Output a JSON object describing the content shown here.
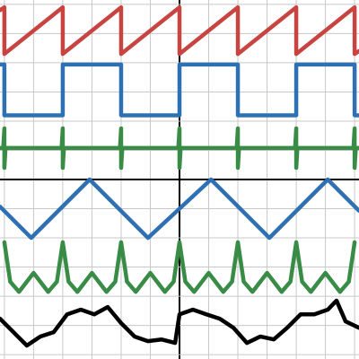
{
  "chart_data": {
    "type": "line",
    "grid": true,
    "xlim": [
      -6.15,
      6.15
    ],
    "ylim": [
      -6.15,
      6.15
    ],
    "xticks": [
      -6,
      -5,
      -4,
      -3,
      -2,
      -1,
      0,
      1,
      2,
      3,
      4,
      5,
      6
    ],
    "yticks": [
      -6,
      -5,
      -4,
      -3,
      -2,
      -1,
      0,
      1,
      2,
      3,
      4,
      5,
      6
    ],
    "series": [
      {
        "color": "#c74440",
        "x": [
          -6.15,
          -6,
          -6,
          -4,
          -4,
          -2,
          -2,
          0,
          0,
          2,
          2,
          4,
          4,
          6,
          6,
          6.15
        ],
        "values": [
          5.8,
          5.9,
          4.3,
          5.9,
          4.3,
          5.9,
          4.3,
          5.9,
          4.3,
          5.9,
          4.3,
          5.9,
          4.3,
          5.9,
          4.3,
          4.4
        ]
      },
      {
        "color": "#2d70b3",
        "x": [
          -6.15,
          -6,
          -6,
          -4,
          -4,
          -2,
          -2,
          0,
          0,
          2,
          2,
          4,
          4,
          6,
          6,
          6.15
        ],
        "values": [
          3.94,
          3.94,
          2.2,
          2.2,
          3.94,
          3.94,
          2.2,
          2.2,
          3.94,
          3.94,
          2.2,
          2.2,
          3.94,
          3.94,
          2.2,
          2.2
        ]
      },
      {
        "color": "#388c46",
        "x": [
          -6.15,
          -6.04,
          -6,
          -6,
          -5.96,
          -4.04,
          -4,
          -4,
          -3.96,
          -2.04,
          -2,
          -2,
          -1.96,
          -0.04,
          0,
          0,
          0.04,
          1.96,
          2,
          2,
          2.04,
          3.96,
          4,
          4,
          4.04,
          5.96,
          6,
          6,
          6.04,
          6.15
        ],
        "values": [
          1.08,
          1.08,
          1.75,
          0.4,
          1.08,
          1.08,
          1.75,
          0.4,
          1.08,
          1.08,
          1.75,
          0.4,
          1.08,
          1.08,
          1.75,
          0.4,
          1.08,
          1.08,
          1.75,
          0.4,
          1.08,
          1.08,
          1.75,
          0.4,
          1.08,
          1.08,
          1.75,
          0.4,
          1.08,
          1.08
        ]
      },
      {
        "color": "#2d70b3",
        "x": [
          -6.15,
          -5.08,
          -3.08,
          -1.08,
          1.08,
          3.08,
          5.08,
          6.15
        ],
        "values": [
          -0.93,
          -2,
          0,
          -2,
          0,
          -2,
          0,
          -1.07
        ]
      },
      {
        "color": "#388c46",
        "x": [
          -6,
          -5.8,
          -5.5,
          -5,
          -4.5,
          -4.2,
          -4,
          -3.8,
          -3.5,
          -3,
          -2.5,
          -2.2,
          -2,
          -1.8,
          -1.5,
          -1,
          -0.5,
          -0.2,
          0,
          0.2,
          0.5,
          1,
          1.5,
          1.8,
          2,
          2.2,
          2.5,
          3,
          3.5,
          3.8,
          4,
          4.2,
          4.5,
          5,
          5.5,
          5.8,
          6
        ],
        "values": [
          -2.15,
          -3.5,
          -3.85,
          -3.2,
          -3.85,
          -3.5,
          -2.15,
          -3.5,
          -3.85,
          -3.2,
          -3.85,
          -3.5,
          -2.15,
          -3.5,
          -3.85,
          -3.2,
          -3.85,
          -3.5,
          -2.15,
          -3.5,
          -3.85,
          -3.2,
          -3.85,
          -3.5,
          -2.15,
          -3.5,
          -3.85,
          -3.2,
          -3.85,
          -3.5,
          -2.15,
          -3.5,
          -3.85,
          -3.2,
          -3.85,
          -3.5,
          -2.15
        ]
      },
      {
        "color": "#000000",
        "x": [
          -6.15,
          -5.69,
          -5.23,
          -4.77,
          -4.31,
          -3.85,
          -3.38,
          -2.92,
          -2.46,
          -2,
          -1.54,
          -1.08,
          -0.62,
          -0.15,
          0,
          0.46,
          0.92,
          1.38,
          1.85,
          2.31,
          2.77,
          3.23,
          3.69,
          4.15,
          4.62,
          5.08,
          5.38,
          5.69,
          6.15
        ],
        "values": [
          -4.77,
          -5.23,
          -5.69,
          -5.38,
          -5.23,
          -4.62,
          -4.46,
          -4.62,
          -4.37,
          -4.92,
          -5.38,
          -5.54,
          -5.48,
          -5.6,
          -4.62,
          -4.46,
          -4.62,
          -4.77,
          -5.08,
          -5.6,
          -5.38,
          -5.48,
          -5.08,
          -4.62,
          -4.62,
          -4.46,
          -4.15,
          -4.86,
          -5.08
        ]
      }
    ]
  }
}
